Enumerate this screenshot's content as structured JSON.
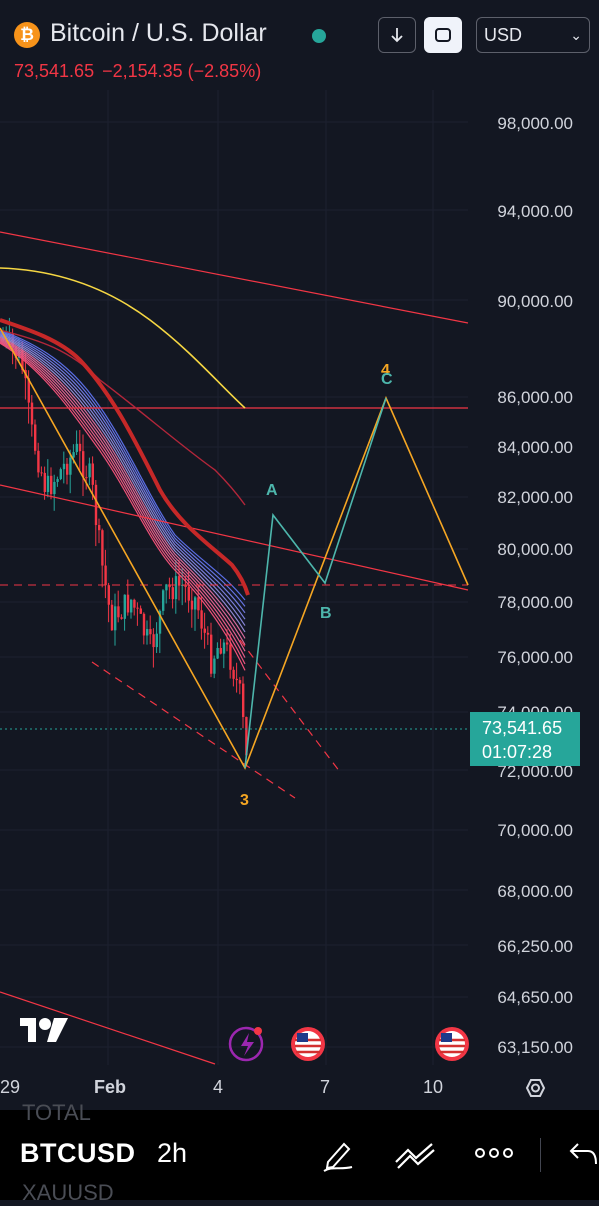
{
  "header": {
    "symbol_title": "Bitcoin / U.S. Dollar",
    "coin_glyph": "₿",
    "last_price": "73,541.65",
    "change": "−2,154.35 (−2.85%)",
    "currency": "USD",
    "change_color": "#f23645",
    "live_color": "#26a69a"
  },
  "price_axis": {
    "labels": [
      "98,000.00",
      "94,000.00",
      "90,000.00",
      "86,000.00",
      "84,000.00",
      "82,000.00",
      "80,000.00",
      "78,000.00",
      "76,000.00",
      "74,000.00",
      "72,000.00",
      "70,000.00",
      "68,000.00",
      "66,250.00",
      "64,650.00",
      "63,150.00"
    ]
  },
  "last_price_badge": {
    "price": "73,541.65",
    "countdown": "01:07:28",
    "color": "#26a69a"
  },
  "time_axis": {
    "labels": [
      "29",
      "Feb",
      "4",
      "7",
      "10"
    ]
  },
  "wave_labels": {
    "w3": "3",
    "w4": "4",
    "wA": "A",
    "wB": "B",
    "wC": "C"
  },
  "bottom_bar": {
    "symbol": "BTCUSD",
    "interval": "2h",
    "ghost_above": "TOTAL",
    "ghost_below": "XAUUSD",
    "icons": [
      "pencil-icon",
      "multiline-icon",
      "more-icon",
      "back-icon"
    ]
  },
  "chart_icons": [
    "tradingview-logo",
    "lightning-icon",
    "us-flag-icon",
    "us-flag-icon",
    "settings-icon"
  ],
  "colors": {
    "up": "#26a69a",
    "down": "#f23645",
    "bg": "#131722",
    "orange_path": "#f5a623",
    "teal_path": "#4db6ac"
  }
}
